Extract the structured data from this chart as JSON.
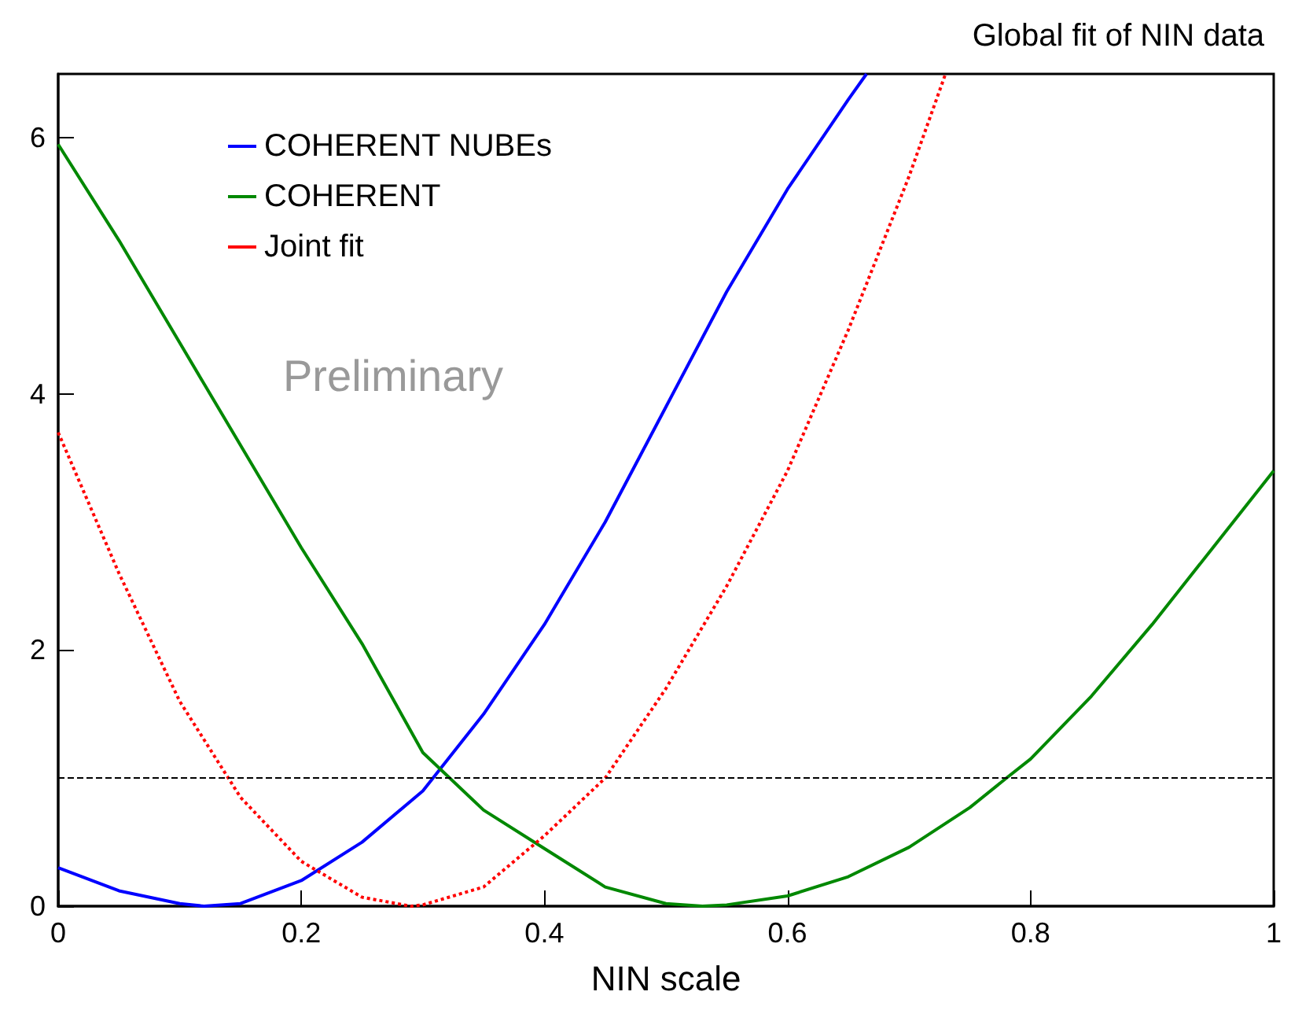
{
  "chart_data": {
    "type": "line",
    "title": "Global fit of NIN data",
    "xlabel": "NIN scale",
    "xlim": [
      0,
      1
    ],
    "xticks": [
      0,
      0.2,
      0.4,
      0.6,
      0.8,
      1
    ],
    "ylim": [
      0,
      6.5
    ],
    "yticks": [
      0,
      2,
      4,
      6
    ],
    "grid": false,
    "legend": "top left",
    "marker": "none",
    "annotations": [
      "Preliminary"
    ],
    "ref_lines": [
      {
        "axis": "y",
        "value": 1,
        "color": "#000000",
        "line_style": "dashed"
      }
    ],
    "series": [
      {
        "name": "COHERENT NUBEs",
        "color": "#0000ff",
        "line_style": "solid",
        "x": [
          0,
          0.05,
          0.1,
          0.12,
          0.15,
          0.2,
          0.25,
          0.3,
          0.35,
          0.4,
          0.45,
          0.5,
          0.55,
          0.6,
          0.65,
          0.665
        ],
        "values": [
          0.3,
          0.12,
          0.02,
          0,
          0.02,
          0.2,
          0.5,
          0.9,
          1.5,
          2.2,
          3.0,
          3.9,
          4.8,
          5.6,
          6.3,
          6.5
        ]
      },
      {
        "name": "COHERENT",
        "color": "#008800",
        "line_style": "solid",
        "x": [
          0,
          0.05,
          0.1,
          0.15,
          0.2,
          0.25,
          0.3,
          0.35,
          0.4,
          0.45,
          0.5,
          0.53,
          0.55,
          0.6,
          0.65,
          0.7,
          0.75,
          0.78,
          0.8,
          0.85,
          0.9,
          0.95,
          1
        ],
        "values": [
          5.95,
          5.2,
          4.4,
          3.6,
          2.8,
          2.05,
          1.2,
          0.75,
          0.45,
          0.15,
          0.02,
          0,
          0.01,
          0.08,
          0.23,
          0.46,
          0.77,
          1.0,
          1.15,
          1.64,
          2.2,
          2.8,
          3.4
        ]
      },
      {
        "name": "Joint fit",
        "color": "#ff0000",
        "line_style": "dotted",
        "x": [
          0,
          0.05,
          0.1,
          0.15,
          0.2,
          0.25,
          0.29,
          0.3,
          0.35,
          0.4,
          0.45,
          0.5,
          0.55,
          0.6,
          0.65,
          0.7,
          0.73
        ],
        "values": [
          3.7,
          2.6,
          1.6,
          0.85,
          0.35,
          0.07,
          0,
          0.01,
          0.15,
          0.55,
          1.0,
          1.7,
          2.5,
          3.4,
          4.5,
          5.7,
          6.5
        ]
      }
    ]
  }
}
